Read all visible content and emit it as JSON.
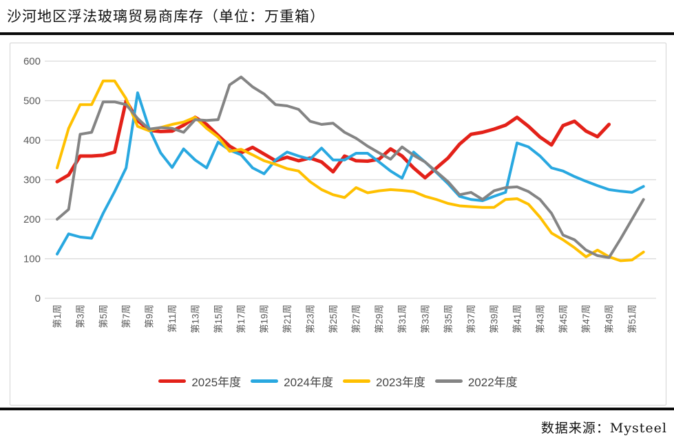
{
  "title": "沙河地区浮法玻璃贸易商库存（单位：万重箱）",
  "source": "数据来源：Mysteel",
  "colors": {
    "red_2025": "#e32119",
    "blue_2024": "#29a8e0",
    "yellow_2023": "#ffc000",
    "gray_2022": "#848484",
    "gridline": "#d9d9d9",
    "axis_text": "#595959"
  },
  "chart_data": {
    "type": "line",
    "title": "沙河地区浮法玻璃贸易商库存（单位：万重箱）",
    "xlabel": "周",
    "ylabel": "万重箱",
    "ylim": [
      0,
      600
    ],
    "y_ticks": [
      0,
      100,
      200,
      300,
      400,
      500,
      600
    ],
    "grid": true,
    "legend_position": "bottom",
    "weeks": 52,
    "x_tick_labels": [
      "第1周",
      "第3周",
      "第5周",
      "第7周",
      "第9周",
      "第11周",
      "第13周",
      "第15周",
      "第17周",
      "第19周",
      "第21周",
      "第23周",
      "第25周",
      "第27周",
      "第29周",
      "第31周",
      "第33周",
      "第35周",
      "第37周",
      "第39周",
      "第41周",
      "第43周",
      "第45周",
      "第47周",
      "第49周",
      "第51周"
    ],
    "series": [
      {
        "name": "2025年度",
        "color": "#e32119",
        "values": [
          295,
          312,
          360,
          360,
          362,
          370,
          500,
          450,
          425,
          422,
          423,
          438,
          458,
          440,
          412,
          385,
          368,
          382,
          365,
          348,
          357,
          348,
          355,
          345,
          320,
          360,
          348,
          347,
          352,
          378,
          360,
          330,
          305,
          330,
          355,
          390,
          415,
          420,
          428,
          438,
          458,
          435,
          408,
          388,
          437,
          448,
          423,
          409,
          440,
          null,
          null,
          null
        ]
      },
      {
        "name": "2024年度",
        "color": "#29a8e0",
        "values": [
          112,
          163,
          155,
          152,
          215,
          270,
          330,
          520,
          430,
          368,
          331,
          378,
          350,
          330,
          395,
          375,
          363,
          330,
          315,
          350,
          370,
          360,
          352,
          380,
          350,
          350,
          367,
          367,
          345,
          322,
          304,
          370,
          345,
          318,
          290,
          258,
          250,
          247,
          258,
          268,
          393,
          383,
          360,
          330,
          322,
          308,
          296,
          285,
          275,
          271,
          268,
          283
        ]
      },
      {
        "name": "2023年度",
        "color": "#ffc000",
        "values": [
          330,
          430,
          490,
          490,
          550,
          550,
          505,
          435,
          424,
          432,
          440,
          446,
          458,
          430,
          408,
          372,
          377,
          363,
          348,
          339,
          328,
          322,
          295,
          275,
          262,
          255,
          280,
          267,
          272,
          275,
          273,
          270,
          258,
          250,
          240,
          234,
          232,
          230,
          230,
          250,
          252,
          238,
          205,
          165,
          148,
          128,
          105,
          122,
          105,
          95,
          97,
          117
        ]
      },
      {
        "name": "2022年度",
        "color": "#848484",
        "values": [
          200,
          225,
          415,
          420,
          497,
          497,
          490,
          455,
          428,
          432,
          430,
          420,
          452,
          450,
          452,
          540,
          560,
          535,
          517,
          490,
          487,
          478,
          448,
          440,
          443,
          420,
          405,
          385,
          368,
          352,
          383,
          362,
          345,
          320,
          295,
          262,
          268,
          250,
          272,
          280,
          282,
          270,
          250,
          215,
          160,
          148,
          122,
          108,
          103,
          150,
          200,
          250
        ]
      }
    ]
  }
}
